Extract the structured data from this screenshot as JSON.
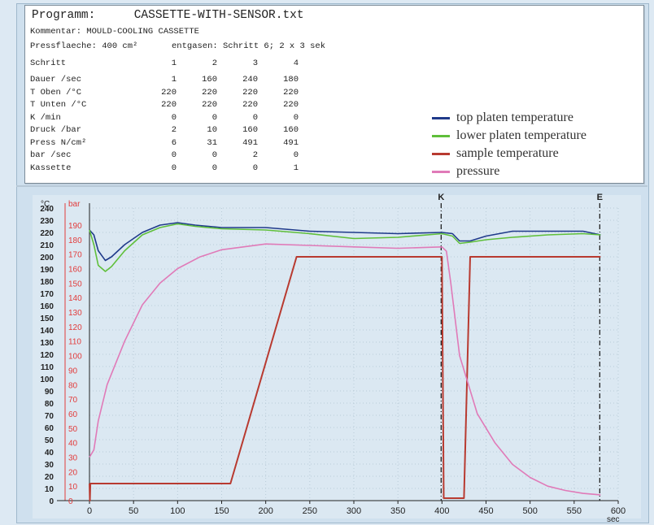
{
  "program": {
    "title_label": "Programm:",
    "file_name": "CASSETTE-WITH-SENSOR.txt",
    "comment": "Kommentar: MOULD-COOLING CASSETTE",
    "press_area": "Pressflaeche: 400 cm²",
    "degas": "entgasen: Schritt 6;  2 x 3 sek",
    "step_label": "Schritt",
    "steps": [
      "1",
      "2",
      "3",
      "4"
    ],
    "rows": [
      {
        "name": "Dauer /sec",
        "values": [
          "1",
          "160",
          "240",
          "180"
        ]
      },
      {
        "name": "T Oben  /°C",
        "values": [
          "220",
          "220",
          "220",
          "220"
        ]
      },
      {
        "name": "T Unten  /°C",
        "values": [
          "220",
          "220",
          "220",
          "220"
        ]
      },
      {
        "name": "K /min",
        "values": [
          "0",
          "0",
          "0",
          "0"
        ]
      },
      {
        "name": "Druck  /bar",
        "values": [
          "2",
          "10",
          "160",
          "160"
        ]
      },
      {
        "name": "Press  N/cm²",
        "values": [
          "6",
          "31",
          "491",
          "491"
        ]
      },
      {
        "name": "bar /sec",
        "values": [
          "0",
          "0",
          "2",
          "0"
        ]
      },
      {
        "name": "Kassette",
        "values": [
          "0",
          "0",
          "0",
          "1"
        ]
      }
    ]
  },
  "legend": [
    {
      "label": "top platen temperature",
      "color": "#1f3a8a"
    },
    {
      "label": "lower platen temperature",
      "color": "#5fbf3a"
    },
    {
      "label": "sample temperature",
      "color": "#b83a30"
    },
    {
      "label": "pressure",
      "color": "#e07ab8"
    }
  ],
  "chart_data": {
    "type": "line",
    "xlabel": "sec",
    "ylabel_left": "°C",
    "ylabel_right": "bar",
    "xlim": [
      0,
      600
    ],
    "ylim_temp": [
      0,
      240
    ],
    "ylim_bar": [
      0,
      190
    ],
    "x_ticks": [
      0,
      50,
      100,
      150,
      200,
      250,
      300,
      350,
      400,
      450,
      500,
      550,
      600
    ],
    "y_ticks_temp": [
      0,
      10,
      20,
      30,
      40,
      50,
      60,
      70,
      80,
      90,
      100,
      110,
      120,
      130,
      140,
      150,
      160,
      170,
      180,
      190,
      200,
      210,
      220,
      230,
      240
    ],
    "y_ticks_bar": [
      0,
      10,
      20,
      30,
      40,
      50,
      60,
      70,
      80,
      90,
      100,
      110,
      120,
      130,
      140,
      150,
      160,
      170,
      180,
      190
    ],
    "markers": [
      {
        "label": "K",
        "x": 400
      },
      {
        "label": "E",
        "x": 580
      }
    ],
    "grid": true,
    "series": [
      {
        "name": "top platen temperature",
        "axis": "temp",
        "color": "#1f3a8a",
        "points": [
          [
            0,
            222
          ],
          [
            5,
            218
          ],
          [
            10,
            205
          ],
          [
            18,
            197
          ],
          [
            25,
            200
          ],
          [
            40,
            210
          ],
          [
            60,
            220
          ],
          [
            80,
            226
          ],
          [
            100,
            228
          ],
          [
            120,
            226
          ],
          [
            150,
            224
          ],
          [
            200,
            224
          ],
          [
            250,
            221
          ],
          [
            300,
            220
          ],
          [
            350,
            219
          ],
          [
            400,
            220
          ],
          [
            412,
            219
          ],
          [
            420,
            213
          ],
          [
            432,
            213
          ],
          [
            450,
            217
          ],
          [
            480,
            221
          ],
          [
            520,
            221
          ],
          [
            560,
            221
          ],
          [
            580,
            218
          ]
        ]
      },
      {
        "name": "lower platen temperature",
        "axis": "temp",
        "color": "#5fbf3a",
        "points": [
          [
            0,
            222
          ],
          [
            5,
            210
          ],
          [
            10,
            193
          ],
          [
            18,
            188
          ],
          [
            25,
            192
          ],
          [
            40,
            205
          ],
          [
            60,
            218
          ],
          [
            80,
            224
          ],
          [
            100,
            227
          ],
          [
            120,
            225
          ],
          [
            150,
            223
          ],
          [
            200,
            222
          ],
          [
            250,
            219
          ],
          [
            300,
            215
          ],
          [
            350,
            216
          ],
          [
            400,
            219
          ],
          [
            412,
            217
          ],
          [
            420,
            211
          ],
          [
            432,
            212
          ],
          [
            450,
            214
          ],
          [
            480,
            216
          ],
          [
            520,
            218
          ],
          [
            560,
            219
          ],
          [
            580,
            218
          ]
        ]
      },
      {
        "name": "sample temperature",
        "axis": "temp",
        "color": "#b83a30",
        "points": [
          [
            0,
            14
          ],
          [
            0.5,
            0
          ],
          [
            1,
            14
          ],
          [
            160,
            14
          ],
          [
            235,
            200
          ],
          [
            400,
            200
          ],
          [
            402,
            2
          ],
          [
            425,
            2
          ],
          [
            432,
            200
          ],
          [
            580,
            200
          ]
        ]
      },
      {
        "name": "pressure",
        "axis": "bar",
        "color": "#e07ab8",
        "points": [
          [
            0,
            30
          ],
          [
            5,
            35
          ],
          [
            10,
            55
          ],
          [
            20,
            80
          ],
          [
            40,
            110
          ],
          [
            60,
            135
          ],
          [
            80,
            150
          ],
          [
            100,
            160
          ],
          [
            125,
            168
          ],
          [
            150,
            173
          ],
          [
            200,
            177
          ],
          [
            250,
            176
          ],
          [
            300,
            175
          ],
          [
            350,
            174
          ],
          [
            400,
            175
          ],
          [
            405,
            172
          ],
          [
            410,
            150
          ],
          [
            420,
            100
          ],
          [
            440,
            60
          ],
          [
            460,
            40
          ],
          [
            480,
            25
          ],
          [
            500,
            16
          ],
          [
            520,
            10
          ],
          [
            540,
            7
          ],
          [
            560,
            5
          ],
          [
            580,
            4
          ]
        ]
      }
    ]
  }
}
